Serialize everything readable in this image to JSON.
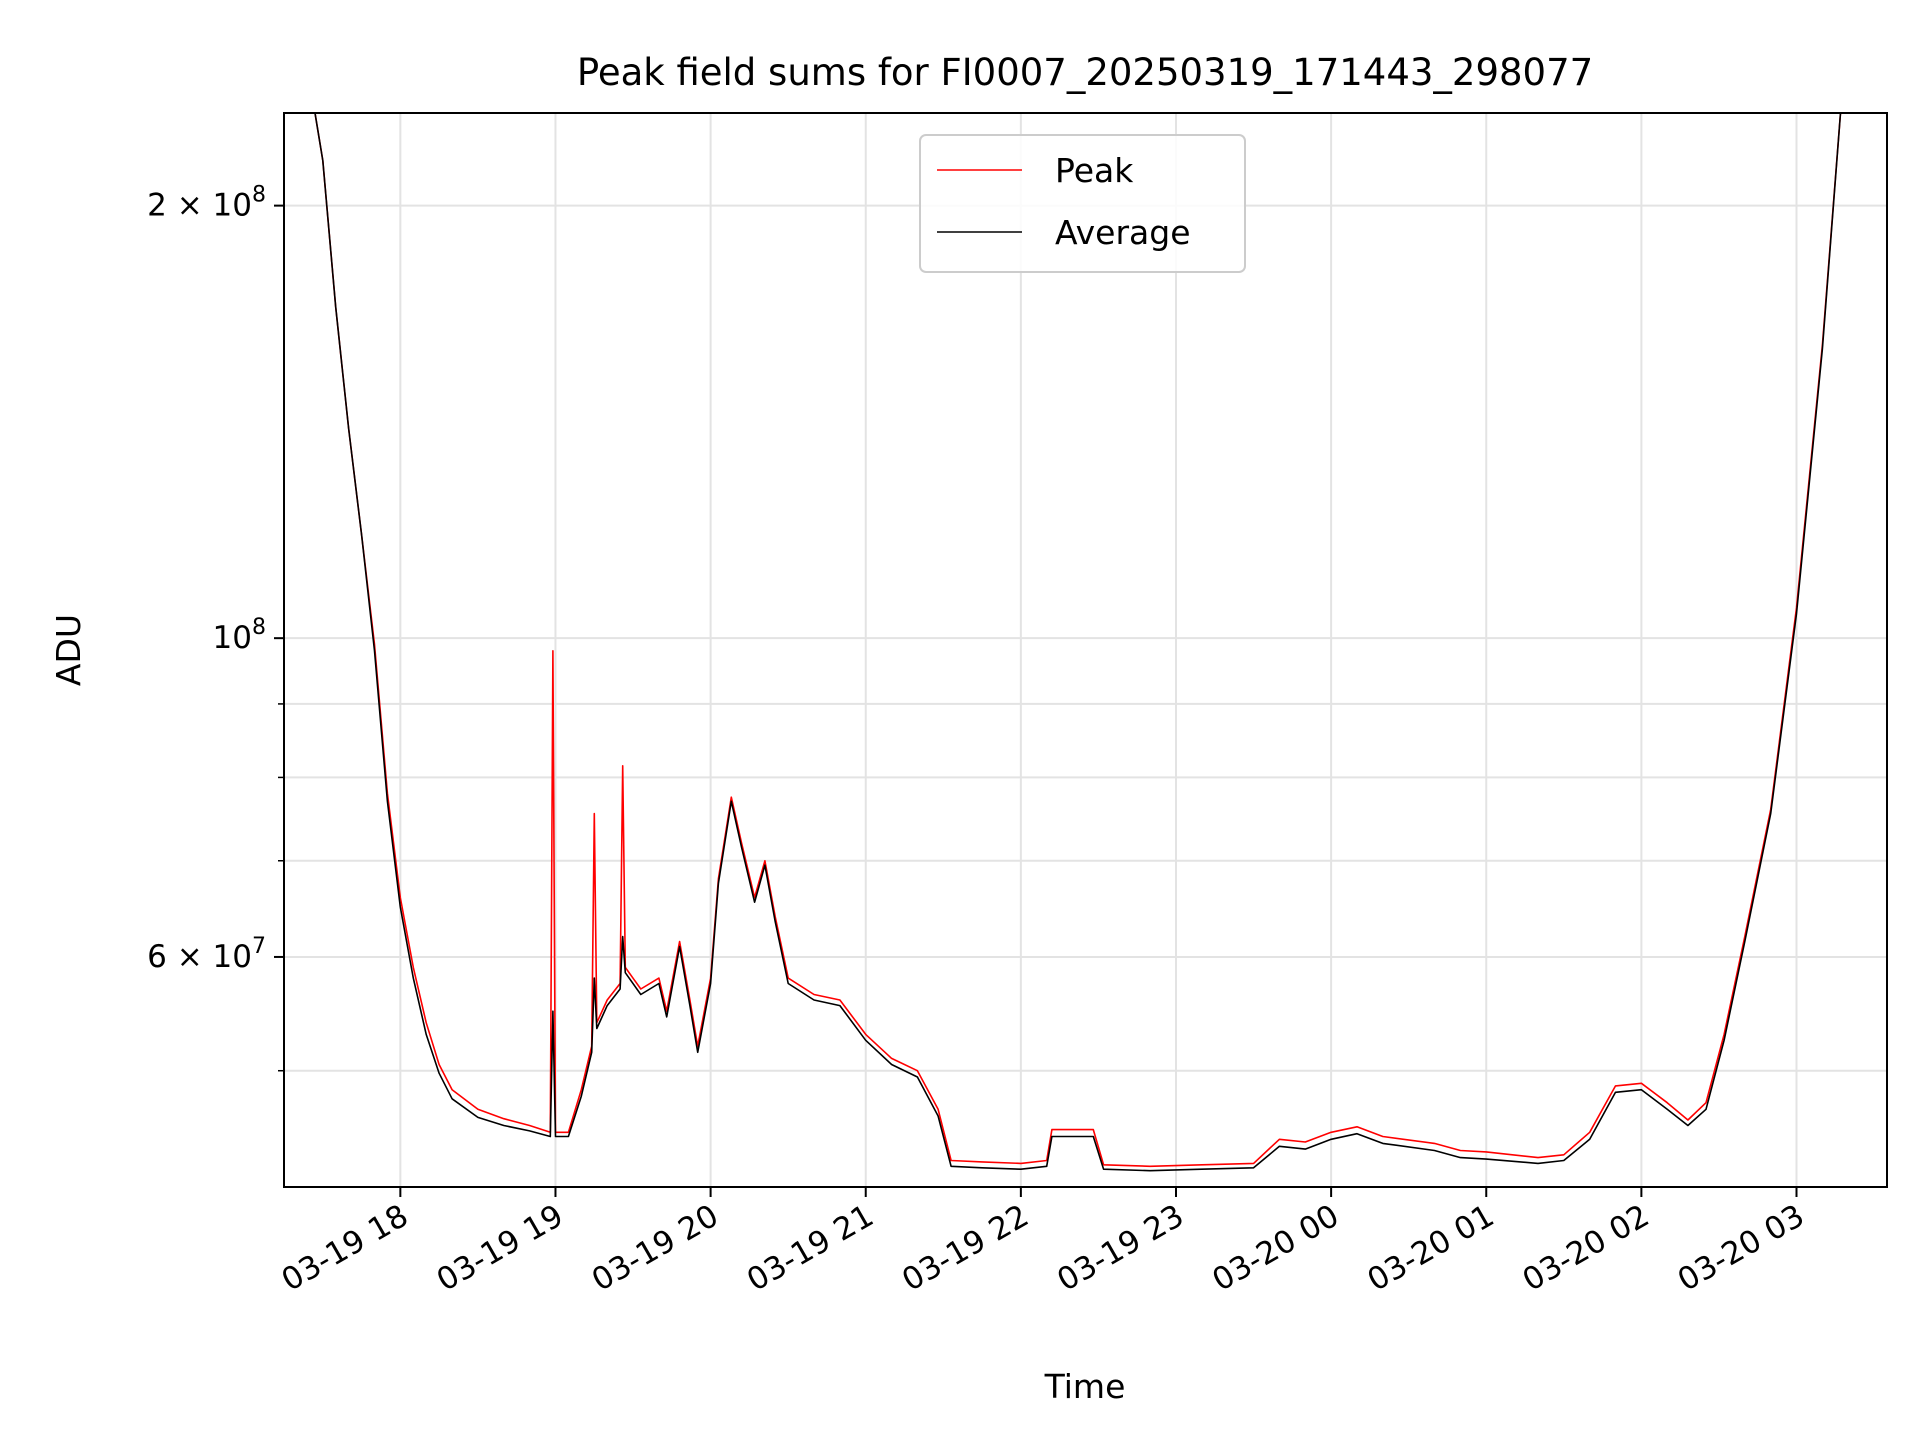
{
  "chart_data": {
    "type": "line",
    "title": "Peak field sums for FI0007_20250319_171443_298077",
    "xlabel": "Time",
    "ylabel": "ADU",
    "x_scale": "time",
    "y_scale": "log",
    "xlim": [
      "2025-03-19T17:15",
      "2025-03-20T03:35"
    ],
    "ylim": [
      41500000,
      232000000
    ],
    "grid": true,
    "legend_position": "upper center",
    "x_ticks": [
      {
        "t": "2025-03-19T18:00",
        "label": "03-19 18"
      },
      {
        "t": "2025-03-19T19:00",
        "label": "03-19 19"
      },
      {
        "t": "2025-03-19T20:00",
        "label": "03-19 20"
      },
      {
        "t": "2025-03-19T21:00",
        "label": "03-19 21"
      },
      {
        "t": "2025-03-19T22:00",
        "label": "03-19 22"
      },
      {
        "t": "2025-03-19T23:00",
        "label": "03-19 23"
      },
      {
        "t": "2025-03-20T00:00",
        "label": "03-20 00"
      },
      {
        "t": "2025-03-20T01:00",
        "label": "03-20 01"
      },
      {
        "t": "2025-03-20T02:00",
        "label": "03-20 02"
      },
      {
        "t": "2025-03-20T03:00",
        "label": "03-20 03"
      }
    ],
    "y_major_ticks": [
      {
        "value": 100000000,
        "base": "10",
        "exp": "8"
      },
      {
        "value": 200000000,
        "base": "2 × 10",
        "exp": "8"
      },
      {
        "value": 60000000,
        "base": "6 × 10",
        "exp": "7"
      }
    ],
    "y_minor_ticks": [
      50000000,
      70000000,
      80000000,
      90000000
    ],
    "series": [
      {
        "name": "Peak",
        "color": "#ff0000",
        "points": [
          [
            "2025-03-19T17:15",
            232000000
          ],
          [
            "2025-03-19T17:27",
            232000000
          ],
          [
            "2025-03-19T17:30",
            215000000
          ],
          [
            "2025-03-19T17:35",
            170000000
          ],
          [
            "2025-03-19T17:40",
            140000000
          ],
          [
            "2025-03-19T17:45",
            118000000
          ],
          [
            "2025-03-19T17:50",
            99000000
          ],
          [
            "2025-03-19T17:55",
            78000000
          ],
          [
            "2025-03-19T18:00",
            66000000
          ],
          [
            "2025-03-19T18:05",
            59000000
          ],
          [
            "2025-03-19T18:10",
            54000000
          ],
          [
            "2025-03-19T18:15",
            50500000
          ],
          [
            "2025-03-19T18:20",
            48500000
          ],
          [
            "2025-03-19T18:30",
            47000000
          ],
          [
            "2025-03-19T18:40",
            46300000
          ],
          [
            "2025-03-19T18:50",
            45800000
          ],
          [
            "2025-03-19T18:58",
            45300000
          ],
          [
            "2025-03-19T18:59",
            98000000
          ],
          [
            "2025-03-19T19:00",
            45300000
          ],
          [
            "2025-03-19T19:05",
            45300000
          ],
          [
            "2025-03-19T19:10",
            48500000
          ],
          [
            "2025-03-19T19:14",
            52000000
          ],
          [
            "2025-03-19T19:15",
            75500000
          ],
          [
            "2025-03-19T19:16",
            54000000
          ],
          [
            "2025-03-19T19:20",
            56000000
          ],
          [
            "2025-03-19T19:25",
            57500000
          ],
          [
            "2025-03-19T19:26",
            81500000
          ],
          [
            "2025-03-19T19:27",
            59000000
          ],
          [
            "2025-03-19T19:33",
            57000000
          ],
          [
            "2025-03-19T19:40",
            58000000
          ],
          [
            "2025-03-19T19:43",
            55000000
          ],
          [
            "2025-03-19T19:48",
            61500000
          ],
          [
            "2025-03-19T19:52",
            56000000
          ],
          [
            "2025-03-19T19:55",
            52000000
          ],
          [
            "2025-03-19T20:00",
            58000000
          ],
          [
            "2025-03-19T20:03",
            68000000
          ],
          [
            "2025-03-19T20:08",
            77500000
          ],
          [
            "2025-03-19T20:12",
            72000000
          ],
          [
            "2025-03-19T20:17",
            66000000
          ],
          [
            "2025-03-19T20:21",
            70000000
          ],
          [
            "2025-03-19T20:25",
            64000000
          ],
          [
            "2025-03-19T20:30",
            58000000
          ],
          [
            "2025-03-19T20:40",
            56500000
          ],
          [
            "2025-03-19T20:50",
            56000000
          ],
          [
            "2025-03-19T21:00",
            53000000
          ],
          [
            "2025-03-19T21:10",
            51000000
          ],
          [
            "2025-03-19T21:20",
            50000000
          ],
          [
            "2025-03-19T21:28",
            47000000
          ],
          [
            "2025-03-19T21:33",
            43300000
          ],
          [
            "2025-03-19T21:45",
            43200000
          ],
          [
            "2025-03-19T22:00",
            43100000
          ],
          [
            "2025-03-19T22:10",
            43300000
          ],
          [
            "2025-03-19T22:12",
            45500000
          ],
          [
            "2025-03-19T22:28",
            45500000
          ],
          [
            "2025-03-19T22:32",
            43000000
          ],
          [
            "2025-03-19T22:50",
            42900000
          ],
          [
            "2025-03-19T23:10",
            43000000
          ],
          [
            "2025-03-19T23:30",
            43100000
          ],
          [
            "2025-03-19T23:40",
            44800000
          ],
          [
            "2025-03-19T23:50",
            44600000
          ],
          [
            "2025-03-20T00:00",
            45300000
          ],
          [
            "2025-03-20T00:10",
            45700000
          ],
          [
            "2025-03-20T00:20",
            45000000
          ],
          [
            "2025-03-20T00:40",
            44500000
          ],
          [
            "2025-03-20T00:50",
            44000000
          ],
          [
            "2025-03-20T01:00",
            43900000
          ],
          [
            "2025-03-20T01:20",
            43500000
          ],
          [
            "2025-03-20T01:30",
            43700000
          ],
          [
            "2025-03-20T01:40",
            45300000
          ],
          [
            "2025-03-20T01:50",
            48800000
          ],
          [
            "2025-03-20T02:00",
            49000000
          ],
          [
            "2025-03-20T02:10",
            47500000
          ],
          [
            "2025-03-20T02:18",
            46200000
          ],
          [
            "2025-03-20T02:25",
            47500000
          ],
          [
            "2025-03-20T02:32",
            53000000
          ],
          [
            "2025-03-20T02:40",
            62000000
          ],
          [
            "2025-03-20T02:50",
            76000000
          ],
          [
            "2025-03-20T03:00",
            105000000
          ],
          [
            "2025-03-20T03:10",
            160000000
          ],
          [
            "2025-03-20T03:17",
            232000000
          ],
          [
            "2025-03-20T03:35",
            232000000
          ]
        ]
      },
      {
        "name": "Average",
        "color": "#000000",
        "points": [
          [
            "2025-03-19T17:15",
            232000000
          ],
          [
            "2025-03-19T17:27",
            232000000
          ],
          [
            "2025-03-19T17:30",
            215000000
          ],
          [
            "2025-03-19T17:35",
            170000000
          ],
          [
            "2025-03-19T17:40",
            140000000
          ],
          [
            "2025-03-19T17:45",
            118000000
          ],
          [
            "2025-03-19T17:50",
            98000000
          ],
          [
            "2025-03-19T17:55",
            77000000
          ],
          [
            "2025-03-19T18:00",
            65000000
          ],
          [
            "2025-03-19T18:05",
            58000000
          ],
          [
            "2025-03-19T18:10",
            53000000
          ],
          [
            "2025-03-19T18:15",
            49800000
          ],
          [
            "2025-03-19T18:20",
            47800000
          ],
          [
            "2025-03-19T18:30",
            46400000
          ],
          [
            "2025-03-19T18:40",
            45800000
          ],
          [
            "2025-03-19T18:50",
            45400000
          ],
          [
            "2025-03-19T18:58",
            45000000
          ],
          [
            "2025-03-19T18:59",
            55000000
          ],
          [
            "2025-03-19T19:00",
            45000000
          ],
          [
            "2025-03-19T19:05",
            45000000
          ],
          [
            "2025-03-19T19:10",
            48000000
          ],
          [
            "2025-03-19T19:14",
            51500000
          ],
          [
            "2025-03-19T19:15",
            58000000
          ],
          [
            "2025-03-19T19:16",
            53500000
          ],
          [
            "2025-03-19T19:20",
            55500000
          ],
          [
            "2025-03-19T19:25",
            57000000
          ],
          [
            "2025-03-19T19:26",
            62000000
          ],
          [
            "2025-03-19T19:27",
            58500000
          ],
          [
            "2025-03-19T19:33",
            56500000
          ],
          [
            "2025-03-19T19:40",
            57500000
          ],
          [
            "2025-03-19T19:43",
            54500000
          ],
          [
            "2025-03-19T19:48",
            61000000
          ],
          [
            "2025-03-19T19:52",
            55500000
          ],
          [
            "2025-03-19T19:55",
            51500000
          ],
          [
            "2025-03-19T20:00",
            57500000
          ],
          [
            "2025-03-19T20:03",
            67500000
          ],
          [
            "2025-03-19T20:08",
            77000000
          ],
          [
            "2025-03-19T20:12",
            71500000
          ],
          [
            "2025-03-19T20:17",
            65500000
          ],
          [
            "2025-03-19T20:21",
            69500000
          ],
          [
            "2025-03-19T20:25",
            63500000
          ],
          [
            "2025-03-19T20:30",
            57500000
          ],
          [
            "2025-03-19T20:40",
            56000000
          ],
          [
            "2025-03-19T20:50",
            55500000
          ],
          [
            "2025-03-19T21:00",
            52500000
          ],
          [
            "2025-03-19T21:10",
            50500000
          ],
          [
            "2025-03-19T21:20",
            49500000
          ],
          [
            "2025-03-19T21:28",
            46500000
          ],
          [
            "2025-03-19T21:33",
            42900000
          ],
          [
            "2025-03-19T21:45",
            42800000
          ],
          [
            "2025-03-19T22:00",
            42700000
          ],
          [
            "2025-03-19T22:10",
            42900000
          ],
          [
            "2025-03-19T22:12",
            45000000
          ],
          [
            "2025-03-19T22:28",
            45000000
          ],
          [
            "2025-03-19T22:32",
            42700000
          ],
          [
            "2025-03-19T22:50",
            42600000
          ],
          [
            "2025-03-19T23:10",
            42700000
          ],
          [
            "2025-03-19T23:30",
            42800000
          ],
          [
            "2025-03-19T23:40",
            44300000
          ],
          [
            "2025-03-19T23:50",
            44100000
          ],
          [
            "2025-03-20T00:00",
            44800000
          ],
          [
            "2025-03-20T00:10",
            45200000
          ],
          [
            "2025-03-20T00:20",
            44500000
          ],
          [
            "2025-03-20T00:40",
            44000000
          ],
          [
            "2025-03-20T00:50",
            43500000
          ],
          [
            "2025-03-20T01:00",
            43400000
          ],
          [
            "2025-03-20T01:20",
            43100000
          ],
          [
            "2025-03-20T01:30",
            43300000
          ],
          [
            "2025-03-20T01:40",
            44800000
          ],
          [
            "2025-03-20T01:50",
            48300000
          ],
          [
            "2025-03-20T02:00",
            48500000
          ],
          [
            "2025-03-20T02:10",
            47000000
          ],
          [
            "2025-03-20T02:18",
            45800000
          ],
          [
            "2025-03-20T02:25",
            47000000
          ],
          [
            "2025-03-20T02:32",
            52500000
          ],
          [
            "2025-03-20T02:40",
            61500000
          ],
          [
            "2025-03-20T02:50",
            75500000
          ],
          [
            "2025-03-20T03:00",
            104000000
          ],
          [
            "2025-03-20T03:10",
            159000000
          ],
          [
            "2025-03-20T03:17",
            232000000
          ],
          [
            "2025-03-20T03:35",
            232000000
          ]
        ]
      }
    ]
  }
}
